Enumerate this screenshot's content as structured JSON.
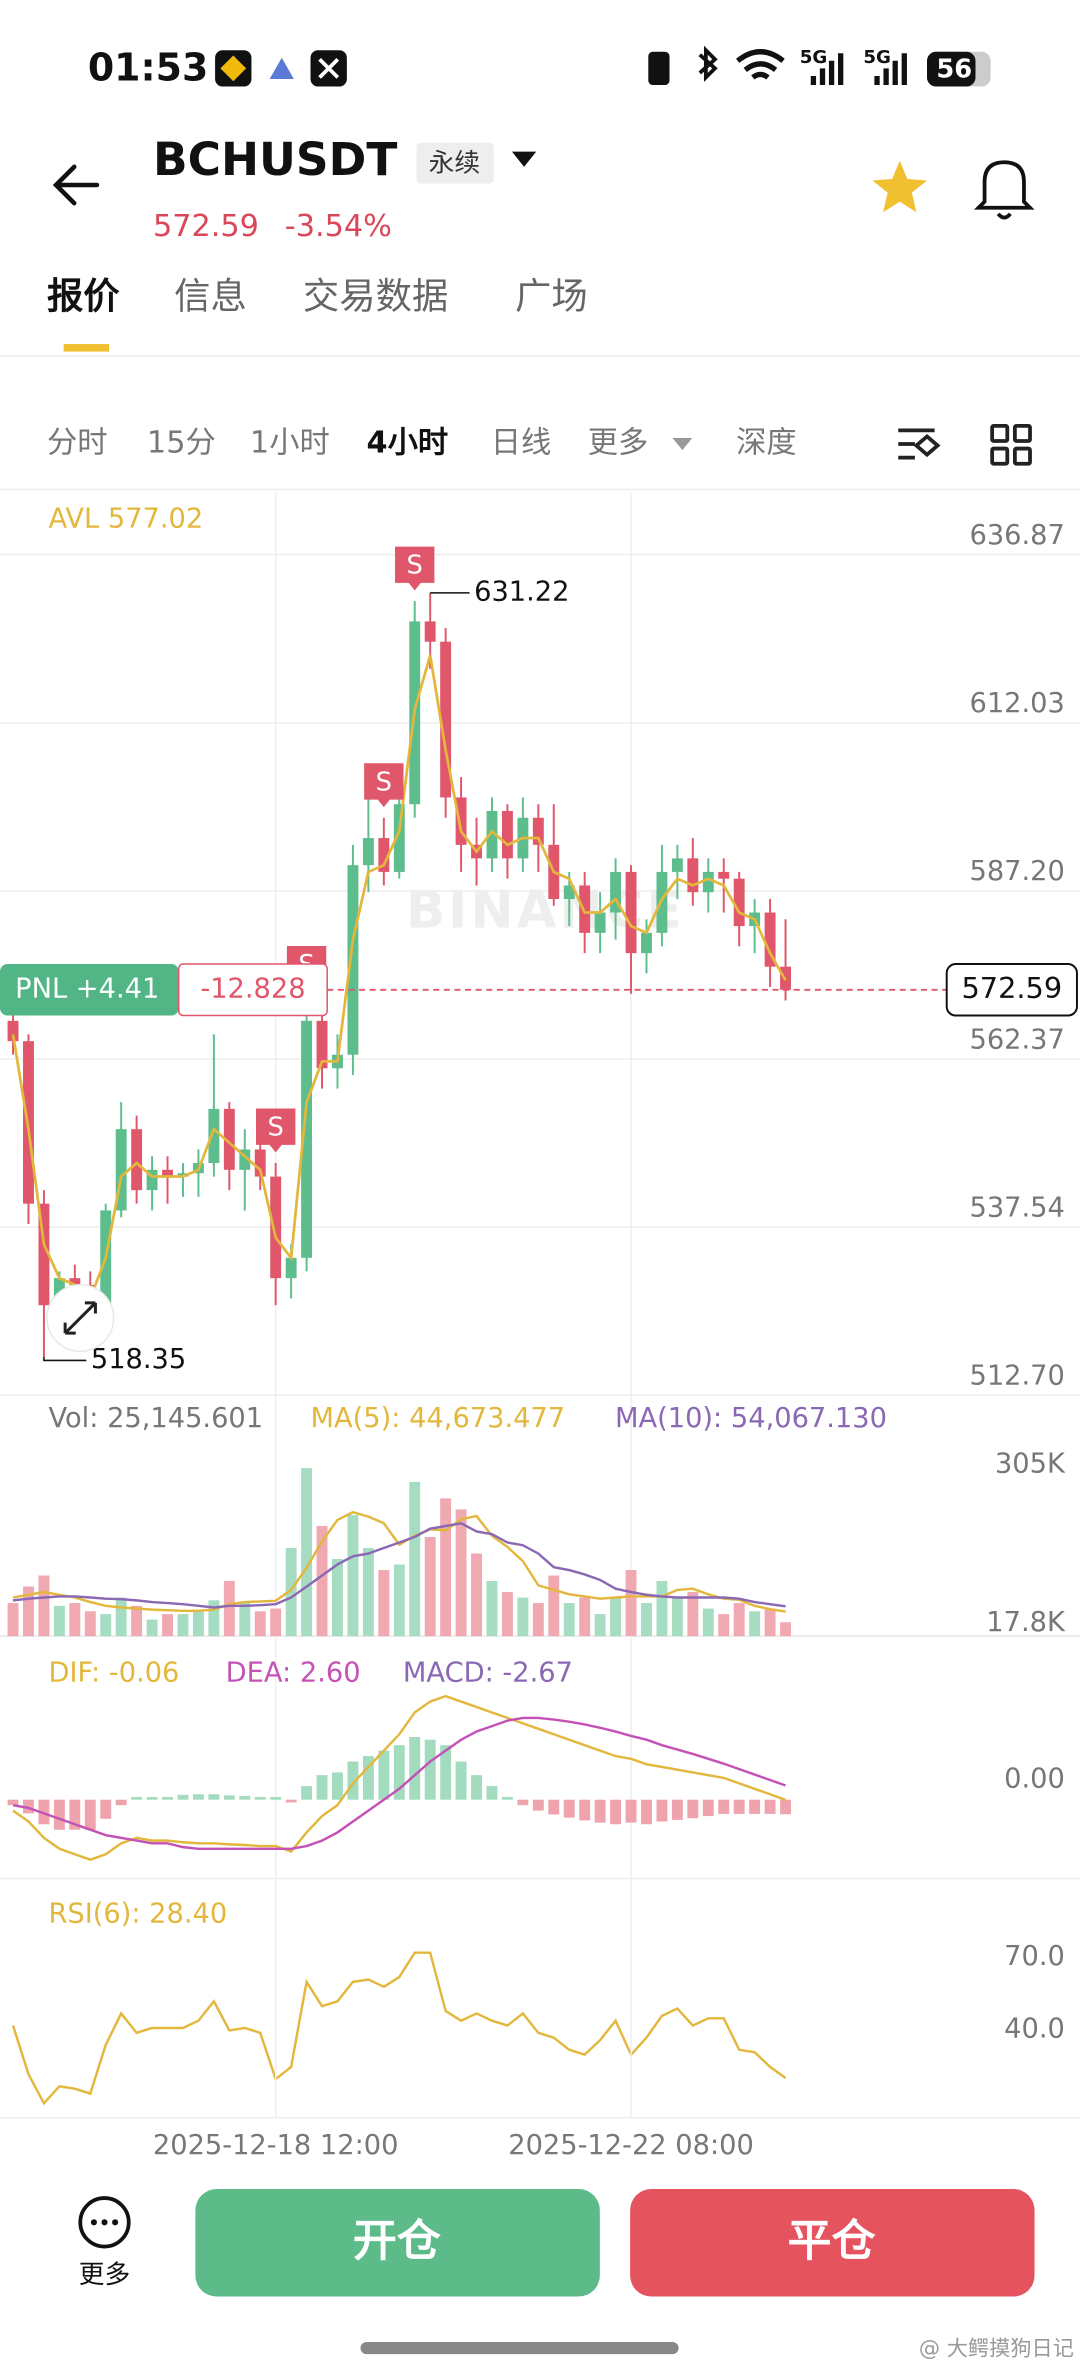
{
  "status_bar": {
    "time": "01:53",
    "network": [
      "5G",
      "5G"
    ],
    "battery": "56"
  },
  "header": {
    "symbol": "BCHUSDT",
    "contract_type": "永续",
    "price": "572.59",
    "change": "-3.54%"
  },
  "tabs": [
    "报价",
    "信息",
    "交易数据",
    "广场"
  ],
  "intervals": [
    "分时",
    "15分",
    "1小时",
    "4小时",
    "日线",
    "更多",
    "深度"
  ],
  "chart_data": [
    {
      "type": "candlestick",
      "watermark": "BINANCE",
      "ylim": [
        512.7,
        646.04
      ],
      "yticks": [
        636.87,
        612.03,
        {
          "value": 587.2,
          "label": "587.20"
        },
        562.37,
        537.54,
        {
          "value": 512.7,
          "label": "512.70"
        }
      ],
      "grid": true,
      "up_color": "#5dbd8c",
      "down_color": "#e0566a",
      "open": [
        568,
        565,
        541,
        526,
        530,
        529,
        525,
        540,
        552,
        543,
        546,
        545,
        545.5,
        547,
        555,
        546,
        549,
        545,
        530,
        533,
        568,
        561,
        563,
        591,
        595,
        590,
        600,
        627,
        624,
        601,
        594,
        592,
        599,
        592,
        598,
        594,
        586,
        588,
        581,
        584,
        590,
        578,
        581,
        590,
        592,
        587,
        590,
        589,
        582,
        584,
        576
      ],
      "high": [
        569,
        566,
        543,
        531,
        532,
        531,
        541,
        556,
        554,
        548,
        548,
        547,
        549,
        566,
        556,
        552,
        551,
        547,
        535,
        571,
        572,
        566,
        594,
        602,
        598,
        605,
        630,
        631.22,
        626,
        604,
        598,
        601,
        600,
        601,
        600,
        600,
        590,
        590,
        587,
        592,
        591,
        583,
        594,
        594,
        595,
        592,
        592,
        590,
        586,
        586,
        583
      ],
      "low": [
        563,
        538,
        518.35,
        522,
        525,
        522,
        524,
        539,
        541,
        540,
        541,
        542,
        542,
        545,
        543,
        540,
        543,
        526,
        527,
        531,
        558,
        558,
        560,
        587,
        588,
        589,
        598,
        620,
        598,
        590,
        588,
        590,
        589,
        590,
        590,
        585,
        582,
        578,
        578,
        580,
        572,
        575,
        579,
        586,
        585,
        584,
        584,
        579,
        578,
        573,
        571
      ],
      "close": [
        565,
        541,
        526,
        530,
        529,
        525,
        540,
        552,
        543,
        546,
        545,
        545.5,
        547,
        555,
        546,
        549,
        545,
        530,
        533,
        568,
        561,
        563,
        591,
        595,
        590,
        600,
        627,
        624,
        601,
        594,
        592,
        599,
        592,
        598,
        594,
        586,
        588,
        581,
        584,
        590,
        578,
        581,
        590,
        592,
        587,
        590,
        589,
        582,
        584,
        576,
        572.59
      ],
      "series": [
        {
          "name": "AVL 577.02",
          "color": "#e2b73c",
          "values": [
            566,
            552,
            535,
            530,
            529,
            527,
            533,
            545,
            547,
            545,
            545,
            545,
            546,
            552,
            550,
            548,
            546,
            536,
            533,
            556,
            562,
            562,
            580,
            590,
            591,
            596,
            614,
            622,
            608,
            596,
            593,
            596,
            594,
            595,
            595,
            590,
            589,
            584,
            584,
            586,
            582,
            581,
            586,
            589,
            588,
            589,
            588,
            584,
            583,
            578,
            574
          ]
        }
      ],
      "last_price": 572.59,
      "pnl": "PNL +4.41",
      "position": "-12.828",
      "high_marker": {
        "index": 27,
        "value": 631.22
      },
      "low_marker": {
        "index": 2,
        "value": 518.35
      },
      "trade_markers": [
        {
          "label": "S",
          "index": 17
        },
        {
          "label": "S",
          "index": 19
        },
        {
          "label": "S",
          "index": 24
        },
        {
          "label": "S",
          "index": 26
        }
      ]
    },
    {
      "type": "volume",
      "ylim": [
        0,
        330
      ],
      "yticks": [
        {
          "value": 305,
          "label": "305K"
        },
        {
          "value": 17.8,
          "label": "17.8K"
        }
      ],
      "series": [
        {
          "name": "Vol: 25,145.601",
          "color": "#777777",
          "values": [
            60,
            90,
            110,
            55,
            60,
            45,
            40,
            70,
            55,
            30,
            40,
            40,
            45,
            65,
            100,
            60,
            45,
            50,
            160,
            305,
            200,
            140,
            220,
            160,
            120,
            130,
            280,
            180,
            250,
            230,
            150,
            100,
            80,
            70,
            60,
            110,
            60,
            70,
            40,
            70,
            120,
            60,
            100,
            70,
            80,
            50,
            40,
            60,
            45,
            50,
            25.145601
          ]
        },
        {
          "name": "MA(5): 44,673.477",
          "color": "#e2b73c",
          "values": [
            70,
            75,
            80,
            75,
            70,
            62,
            55,
            52,
            50,
            48,
            47,
            46,
            46,
            48,
            58,
            62,
            63,
            64,
            84,
            124,
            172,
            211,
            225,
            217,
            205,
            166,
            182,
            194,
            192,
            212,
            218,
            182,
            162,
            136,
            92,
            84,
            76,
            72,
            68,
            70,
            72,
            72,
            72,
            84,
            86,
            76,
            68,
            66,
            55,
            49,
            44.673477
          ]
        },
        {
          "name": "MA(10): 54,067.130",
          "color": "#8a68b4",
          "values": [
            65,
            68,
            70,
            72,
            72,
            70,
            68,
            67,
            65,
            62,
            60,
            58,
            55,
            52,
            55,
            55,
            56,
            58,
            70,
            90,
            110,
            130,
            145,
            150,
            160,
            170,
            180,
            195,
            200,
            205,
            190,
            185,
            170,
            165,
            150,
            125,
            120,
            112,
            102,
            86,
            80,
            75,
            72,
            70,
            70,
            70,
            70,
            68,
            62,
            58,
            54.06713
          ]
        }
      ]
    },
    {
      "type": "macd",
      "ylim": [
        -15,
        25
      ],
      "yticks": [
        {
          "value": 0,
          "label": "0.00"
        }
      ],
      "up_color": "#a3dbbf",
      "down_color": "#eea3ad",
      "series": [
        {
          "name": "DIF: -0.06",
          "color": "#e2b73c",
          "values": [
            -2,
            -4,
            -7,
            -9,
            -10,
            -11,
            -10,
            -8,
            -7,
            -7.5,
            -7.5,
            -7.8,
            -8,
            -8,
            -8.2,
            -8.3,
            -8.5,
            -8.5,
            -9.5,
            -6,
            -3,
            -1,
            3,
            6,
            9,
            12,
            16,
            18,
            19,
            18,
            17,
            16,
            15,
            14,
            13,
            12,
            11,
            10,
            9,
            8,
            7.5,
            6.5,
            6,
            5.5,
            5,
            4.5,
            4,
            3,
            2,
            1,
            -0.06
          ]
        },
        {
          "name": "DEA: 2.60",
          "color": "#c452b6",
          "values": [
            -1,
            -1.5,
            -2.5,
            -3.5,
            -4.5,
            -5.5,
            -6.5,
            -7,
            -7.5,
            -8,
            -8,
            -8.7,
            -9,
            -9,
            -9,
            -9,
            -9,
            -9,
            -9,
            -8.5,
            -7.5,
            -6,
            -4,
            -2,
            0,
            2,
            4.5,
            7,
            9,
            11,
            12.5,
            13.5,
            14.5,
            15,
            15,
            14.7,
            14.3,
            13.8,
            13.2,
            12.5,
            11.7,
            11,
            10,
            9.2,
            8.4,
            7.5,
            6.6,
            5.6,
            4.6,
            3.6,
            2.6
          ]
        },
        {
          "name": "MACD: -2.67",
          "color": "#8a68b4",
          "values": [
            -1,
            -2.5,
            -4.5,
            -5.5,
            -5.5,
            -5.5,
            -3.5,
            -1,
            0.5,
            0.5,
            0.5,
            0.9,
            1,
            1,
            0.8,
            0.7,
            0.5,
            0.5,
            -0.5,
            2.5,
            4.5,
            5,
            7,
            8,
            9,
            10,
            11.5,
            11,
            10,
            7,
            4.5,
            2.5,
            0.5,
            -1,
            -2,
            -2.7,
            -3.3,
            -3.8,
            -4.2,
            -4.5,
            -4.2,
            -4.5,
            -4,
            -3.7,
            -3.4,
            -3,
            -2.6,
            -2.6,
            -2.6,
            -2.6,
            -2.67
          ]
        }
      ]
    },
    {
      "type": "line",
      "ylim": [
        12,
        100
      ],
      "yticks": [
        {
          "value": 70,
          "label": "70.0"
        },
        {
          "value": 40,
          "label": "40.0"
        }
      ],
      "xticks": [
        {
          "value": 17,
          "label": "2025-12-18 12:00"
        },
        {
          "value": 40,
          "label": "2025-12-22 08:00"
        }
      ],
      "series": [
        {
          "name": "RSI(6): 28.40",
          "color": "#e2b73c",
          "values": [
            50,
            30,
            18,
            25,
            24,
            22,
            42,
            55,
            47,
            49,
            49,
            49,
            52,
            60,
            48,
            49,
            47,
            28,
            33,
            68,
            58,
            60,
            68,
            69,
            66,
            70,
            80,
            80,
            56,
            52,
            55,
            52,
            50,
            55,
            47,
            45,
            40,
            38,
            44,
            52,
            38,
            45,
            54,
            57,
            50,
            53,
            53,
            40,
            39,
            33,
            28.4
          ]
        }
      ]
    }
  ],
  "bottom_bar": {
    "more": "更多",
    "open": "开仓",
    "close": "平仓"
  },
  "watermark": "@ 大鳄摸狗日记"
}
